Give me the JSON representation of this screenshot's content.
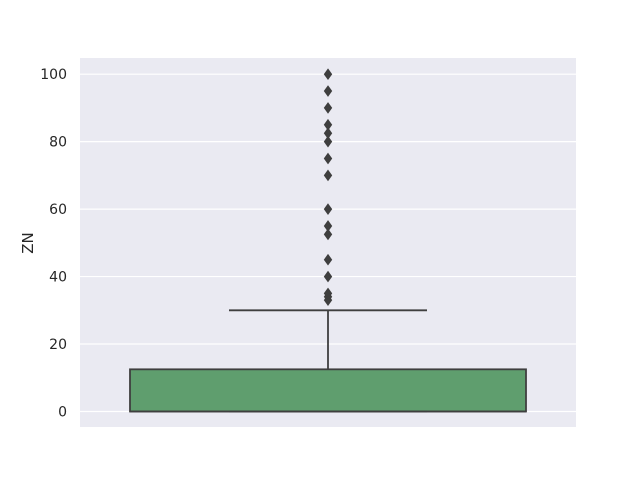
{
  "chart_data": {
    "type": "box",
    "ylabel": "ZN",
    "xlabel": "",
    "ylim": [
      -4.6,
      104.8
    ],
    "yticks": [
      0,
      20,
      40,
      60,
      80,
      100
    ],
    "grid": true,
    "colors": {
      "background": "#eaeaf2",
      "grid": "#ffffff",
      "box_fill": "#5f9e6e",
      "line": "#3f3f3f"
    },
    "box": {
      "min": 0,
      "q1": 0,
      "median": 0,
      "q3": 12.5,
      "whisker_low": 0,
      "whisker_high": 30
    },
    "outliers": [
      33,
      34,
      35,
      40,
      45,
      52.5,
      55,
      60,
      70,
      75,
      80,
      82.5,
      85,
      90,
      95,
      100
    ]
  }
}
